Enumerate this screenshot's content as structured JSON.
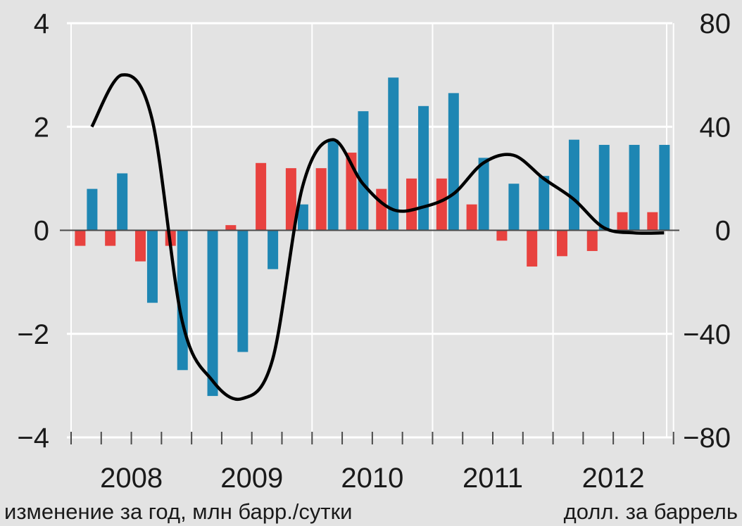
{
  "chart_data": {
    "type": "bar",
    "title": "",
    "xlabel": "",
    "ylabel": "изменение за год, млн барр./сутки",
    "ylabel_right": "долл. за баррель",
    "ylim": [
      -4,
      4
    ],
    "ylim_right": [
      -80,
      80
    ],
    "yticks": [
      "4",
      "2",
      "0",
      "−2",
      "−4"
    ],
    "yticks_right": [
      "80",
      "40",
      "0",
      "−40",
      "−80"
    ],
    "year_labels": [
      "2008",
      "2009",
      "2010",
      "2011",
      "2012"
    ],
    "quarters_per_year": 4,
    "series": [
      {
        "kind": "bar",
        "color": "#e8423f",
        "values": [
          -0.3,
          -0.3,
          -0.6,
          -0.3,
          0.0,
          0.1,
          1.3,
          1.2,
          1.2,
          1.5,
          0.8,
          1.0,
          1.0,
          0.5,
          -0.2,
          -0.7,
          -0.5,
          -0.4,
          0.35,
          0.35
        ]
      },
      {
        "kind": "bar",
        "color": "#1e86b3",
        "values": [
          0.8,
          1.1,
          -1.4,
          -2.7,
          -3.2,
          -2.35,
          -0.75,
          0.5,
          1.75,
          2.3,
          2.95,
          2.4,
          2.65,
          1.4,
          0.9,
          1.05,
          1.75,
          1.65,
          1.65,
          1.65
        ]
      },
      {
        "kind": "line",
        "axis": "right",
        "color": "#000000",
        "values": [
          40,
          60,
          43,
          -35,
          -58,
          -65,
          -50,
          17,
          35,
          18,
          8,
          9,
          14,
          26,
          29,
          20,
          12,
          1,
          -1,
          -1
        ]
      }
    ],
    "grid": true
  }
}
